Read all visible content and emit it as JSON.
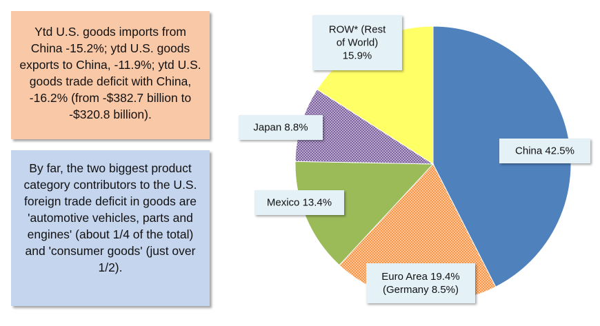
{
  "notes": {
    "imports": "Ytd U.S. goods imports from China -15.2%; ytd U.S. goods exports to China, -11.9%; ytd U.S. goods trade deficit with China, -16.2% (from -$382.7 billion to -$320.8 billion).",
    "categories": "By far, the two biggest product category contributors to the U.S. foreign trade deficit in goods are 'automotive vehicles, parts and engines' (about 1/4 of the total) and 'consumer goods' (just over 1/2).",
    "imports_bg": "#f9c8a7",
    "categories_bg": "#c5d5ee"
  },
  "chart_data": {
    "type": "pie",
    "title": "",
    "slices": [
      {
        "name": "China",
        "value": 42.5,
        "label": [
          "China 42.5%"
        ],
        "color": "#4f81bd",
        "pattern": "solid"
      },
      {
        "name": "Euro Area",
        "value": 19.4,
        "label": [
          "Euro Area 19.4%",
          "(Germany 8.5%)"
        ],
        "color": "#f79646",
        "pattern": "dots"
      },
      {
        "name": "Mexico",
        "value": 13.4,
        "label": [
          "Mexico 13.4%"
        ],
        "color": "#9bbb59",
        "pattern": "solid"
      },
      {
        "name": "Japan",
        "value": 8.8,
        "label": [
          "Japan 8.8%"
        ],
        "color": "#8064a2",
        "pattern": "dots"
      },
      {
        "name": "ROW",
        "value": 15.9,
        "label": [
          "ROW* (Rest",
          "of World)",
          "15.9%"
        ],
        "color": "#ffff66",
        "pattern": "solid"
      }
    ],
    "start_angle_deg": 0,
    "direction": "clockwise",
    "label_box_color": "#e4f1f6"
  }
}
